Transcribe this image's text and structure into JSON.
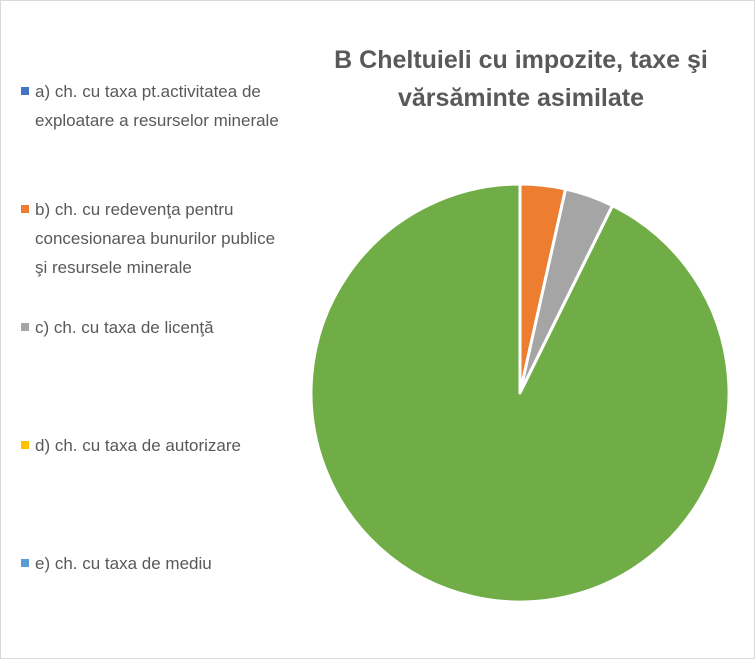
{
  "chart_data": {
    "type": "pie",
    "title": "B Cheltuieli cu impozite, taxe şi vărsăminte asimilate",
    "categories": [
      "a) ch. cu taxa pt.activitatea de exploatare a resurselor minerale",
      "b) ch. cu redevenţa pentru concesionarea bunurilor publice şi resursele minerale",
      "c) ch. cu taxa de licenţă",
      "d) ch. cu taxa de autorizare",
      "e) ch. cu taxa de mediu",
      null
    ],
    "values": [
      0,
      3.5,
      3.8,
      0,
      0,
      92.7
    ],
    "colors": [
      "#4472c4",
      "#ed7d31",
      "#a5a5a5",
      "#ffc000",
      "#5b9bd5",
      "#70ad47"
    ],
    "legend": "left"
  }
}
